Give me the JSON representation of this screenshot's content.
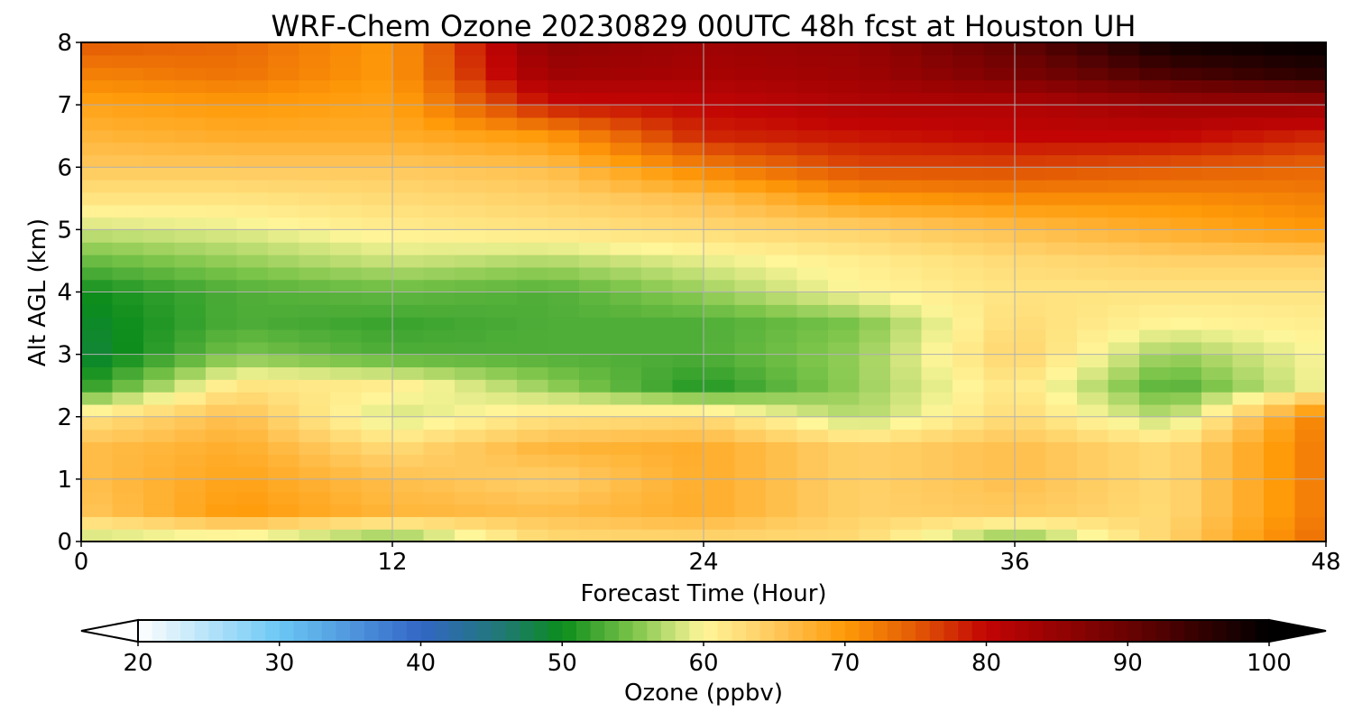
{
  "chart_data": {
    "type": "heatmap",
    "title": "WRF-Chem Ozone  20230829 00UTC 48h fcst at Houston UH",
    "xlabel": "Forecast Time (Hour)",
    "ylabel": "Alt AGL (km)",
    "xlim": [
      0,
      48
    ],
    "ylim": [
      0,
      8
    ],
    "x_ticks": [
      0,
      12,
      24,
      36,
      48
    ],
    "y_ticks": [
      0,
      1,
      2,
      3,
      4,
      5,
      6,
      7,
      8
    ],
    "grid": true,
    "x": [
      0,
      6,
      12,
      18,
      24,
      30,
      36,
      42,
      48
    ],
    "y": [
      0,
      0.5,
      1,
      1.5,
      2,
      2.5,
      3,
      3.5,
      4,
      4.5,
      5,
      5.5,
      6,
      6.5,
      7,
      7.5,
      8
    ],
    "z": [
      [
        57,
        58,
        54,
        63,
        63,
        63,
        54,
        64,
        74
      ],
      [
        65,
        70,
        67,
        66,
        68,
        64,
        65,
        63,
        73
      ],
      [
        66,
        69,
        66,
        64,
        68,
        64,
        66,
        63,
        73
      ],
      [
        66,
        68,
        63,
        67,
        68,
        64,
        66,
        63,
        73
      ],
      [
        62,
        66,
        58,
        62,
        63,
        57,
        63,
        57,
        73
      ],
      [
        51,
        62,
        61,
        56,
        51,
        56,
        62,
        53,
        60
      ],
      [
        48,
        55,
        53,
        53,
        53,
        56,
        64,
        56,
        60
      ],
      [
        49,
        53,
        52,
        53,
        53,
        55,
        63,
        60,
        61
      ],
      [
        50,
        53,
        54,
        53,
        56,
        60,
        62,
        62,
        62
      ],
      [
        54,
        56,
        58,
        57,
        59,
        61,
        63,
        64,
        64
      ],
      [
        58,
        59,
        61,
        62,
        63,
        64,
        66,
        68,
        70
      ],
      [
        62,
        62,
        63,
        64,
        66,
        70,
        71,
        71,
        72
      ],
      [
        65,
        65,
        65,
        66,
        72,
        76,
        76,
        75,
        74
      ],
      [
        67,
        68,
        68,
        70,
        78,
        79,
        80,
        80,
        78
      ],
      [
        69,
        70,
        69,
        79,
        80,
        82,
        82,
        84,
        84
      ],
      [
        72,
        73,
        70,
        84,
        83,
        84,
        88,
        93,
        96
      ],
      [
        75,
        74,
        70,
        86,
        84,
        85,
        91,
        99,
        100
      ]
    ],
    "colorbar": {
      "label": "Ozone  (ppbv)",
      "min": 20,
      "max": 100,
      "ticks": [
        20,
        30,
        40,
        50,
        60,
        70,
        80,
        90,
        100
      ],
      "extend": "both",
      "orientation": "horizontal",
      "stops": [
        {
          "v": 20,
          "c": "#ffffff"
        },
        {
          "v": 30,
          "c": "#6cc8f4"
        },
        {
          "v": 40,
          "c": "#3366c6"
        },
        {
          "v": 46,
          "c": "#1f7a70"
        },
        {
          "v": 50,
          "c": "#0b8c1c"
        },
        {
          "v": 55,
          "c": "#7cc44a"
        },
        {
          "v": 60,
          "c": "#fff69a"
        },
        {
          "v": 65,
          "c": "#ffc85c"
        },
        {
          "v": 70,
          "c": "#ff9a08"
        },
        {
          "v": 75,
          "c": "#e35a05"
        },
        {
          "v": 80,
          "c": "#c20404"
        },
        {
          "v": 90,
          "c": "#6a0202"
        },
        {
          "v": 100,
          "c": "#000000"
        }
      ]
    }
  }
}
